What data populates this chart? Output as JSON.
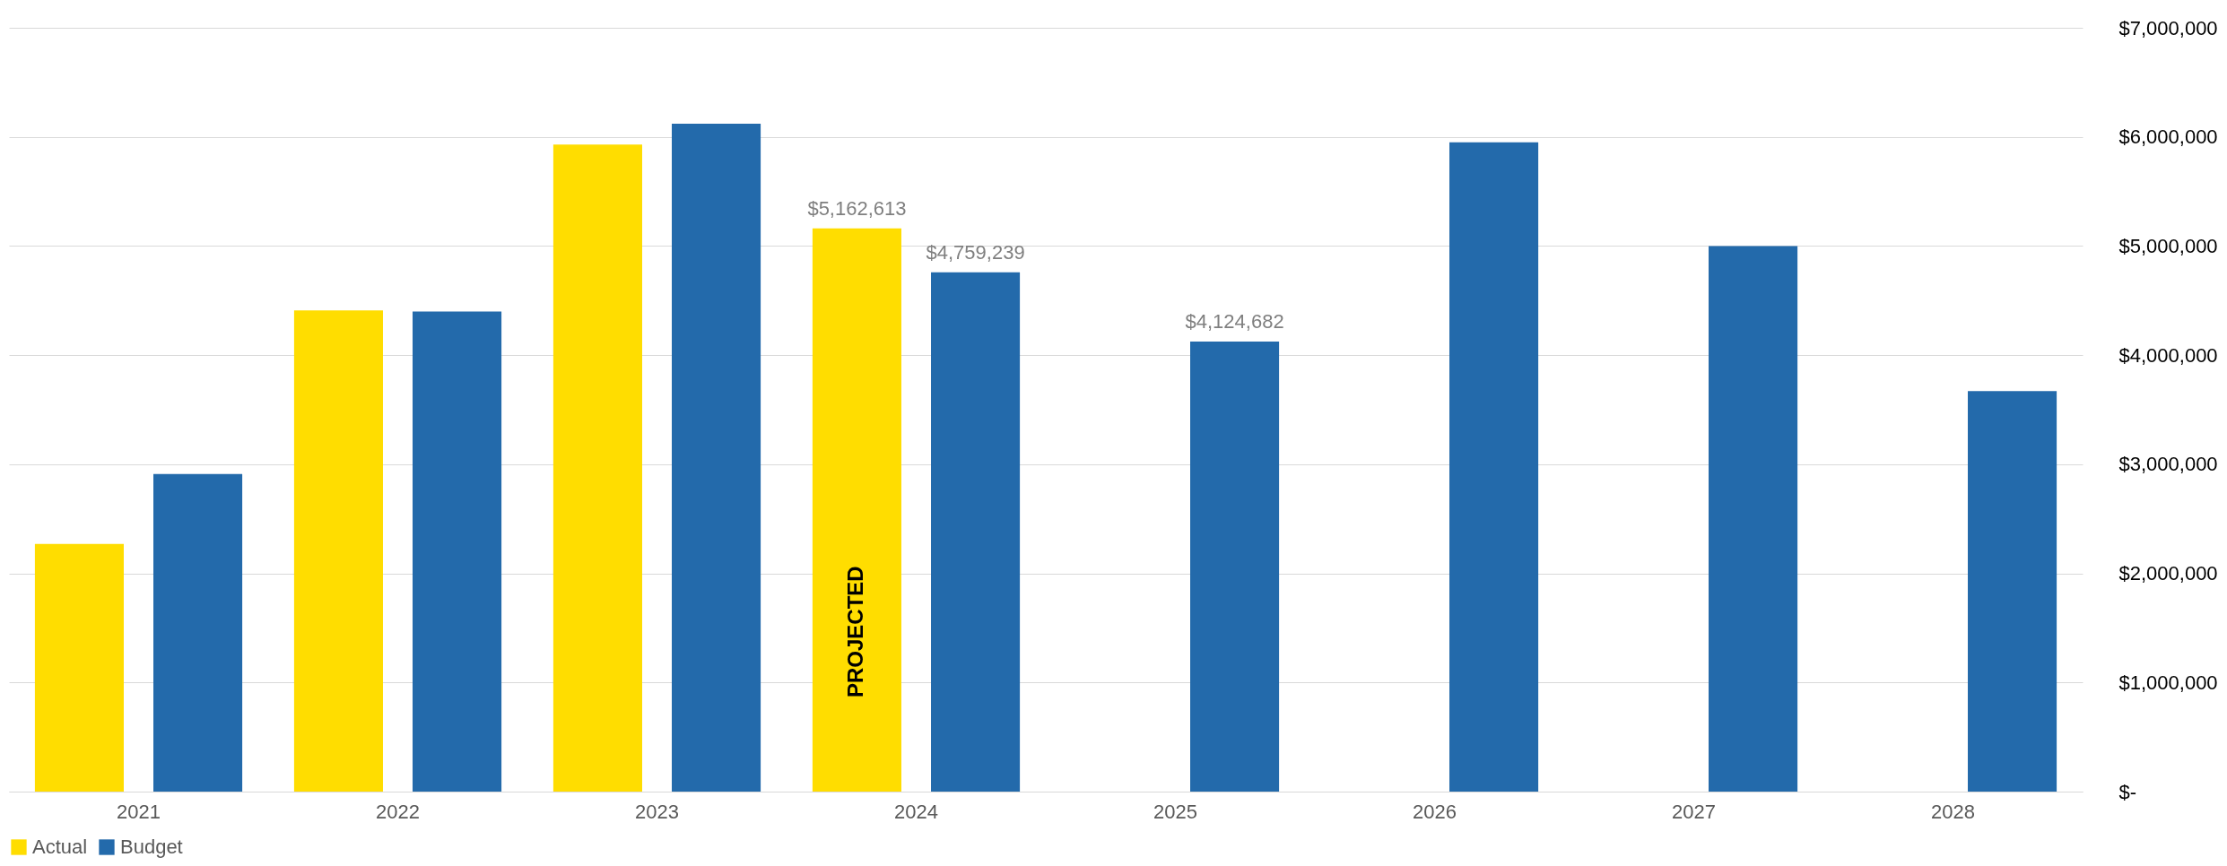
{
  "chart_data": {
    "type": "bar",
    "categories": [
      "2021",
      "2022",
      "2023",
      "2024",
      "2025",
      "2026",
      "2027",
      "2028"
    ],
    "series": [
      {
        "name": "Actual",
        "color": "#ffdd00",
        "values": [
          2270000,
          4410000,
          5930000,
          5162613,
          null,
          null,
          null,
          null
        ],
        "value_labels": [
          null,
          null,
          null,
          "$5,162,613",
          null,
          null,
          null,
          null
        ]
      },
      {
        "name": "Budget",
        "color": "#236aab",
        "values": [
          2910000,
          4400000,
          6120000,
          4759239,
          4124682,
          5950000,
          5000000,
          3670000
        ],
        "value_labels": [
          null,
          null,
          null,
          "$4,759,239",
          "$4,124,682",
          null,
          null,
          null
        ]
      }
    ],
    "ylim": [
      0,
      7000000
    ],
    "yticks": [
      {
        "value": 0,
        "label": "$-"
      },
      {
        "value": 1000000,
        "label": "$1,000,000"
      },
      {
        "value": 2000000,
        "label": "$2,000,000"
      },
      {
        "value": 3000000,
        "label": "$3,000,000"
      },
      {
        "value": 4000000,
        "label": "$4,000,000"
      },
      {
        "value": 5000000,
        "label": "$5,000,000"
      },
      {
        "value": 6000000,
        "label": "$6,000,000"
      },
      {
        "value": 7000000,
        "label": "$7,000,000"
      }
    ],
    "annotations": [
      "PROJECTED"
    ],
    "grid": "y",
    "legend": "bottom"
  }
}
